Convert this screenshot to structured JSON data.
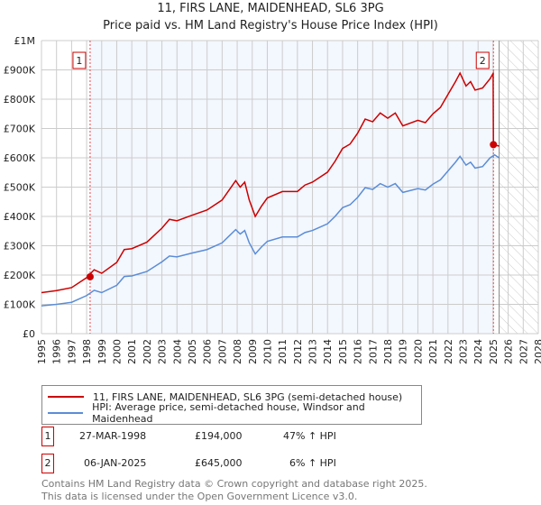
{
  "chart_data": {
    "type": "line",
    "title": "11, FIRS LANE, MAIDENHEAD, SL6 3PG",
    "subtitle": "Price paid vs. HM Land Registry's House Price Index (HPI)",
    "xlim": [
      1995,
      2028
    ],
    "ylim": [
      0,
      1000000
    ],
    "x_ticks": [
      "1995",
      "1996",
      "1997",
      "1998",
      "1999",
      "2000",
      "2001",
      "2002",
      "2003",
      "2004",
      "2005",
      "2006",
      "2007",
      "2008",
      "2009",
      "2010",
      "2011",
      "2012",
      "2013",
      "2014",
      "2015",
      "2016",
      "2017",
      "2018",
      "2019",
      "2020",
      "2021",
      "2022",
      "2023",
      "2024",
      "2025",
      "2026",
      "2027",
      "2028"
    ],
    "y_ticks": [
      {
        "v": 0,
        "label": "£0"
      },
      {
        "v": 100000,
        "label": "£100K"
      },
      {
        "v": 200000,
        "label": "£200K"
      },
      {
        "v": 300000,
        "label": "£300K"
      },
      {
        "v": 400000,
        "label": "£400K"
      },
      {
        "v": 500000,
        "label": "£500K"
      },
      {
        "v": 600000,
        "label": "£600K"
      },
      {
        "v": 700000,
        "label": "£700K"
      },
      {
        "v": 800000,
        "label": "£800K"
      },
      {
        "v": 900000,
        "label": "£900K"
      },
      {
        "v": 1000000,
        "label": "£1M"
      }
    ],
    "grid": true,
    "shaded_range": [
      1998.23,
      2025.02
    ],
    "forecast_hatch_from": 2025.4,
    "series": [
      {
        "name": "11, FIRS LANE, MAIDENHEAD, SL6 3PG (semi-detached house)",
        "color": "#cc0000",
        "points": [
          [
            1995,
            140
          ],
          [
            1996,
            147
          ],
          [
            1997,
            157
          ],
          [
            1998,
            191
          ],
          [
            1998.5,
            218
          ],
          [
            1999,
            206
          ],
          [
            2000,
            243
          ],
          [
            2000.5,
            287
          ],
          [
            2001,
            290
          ],
          [
            2002,
            312
          ],
          [
            2003,
            360
          ],
          [
            2003.5,
            390
          ],
          [
            2004,
            385
          ],
          [
            2005,
            404
          ],
          [
            2006,
            422
          ],
          [
            2007,
            456
          ],
          [
            2007.9,
            522
          ],
          [
            2008.2,
            500
          ],
          [
            2008.5,
            517
          ],
          [
            2008.8,
            456
          ],
          [
            2009.2,
            400
          ],
          [
            2009.6,
            434
          ],
          [
            2010,
            463
          ],
          [
            2011,
            485
          ],
          [
            2012,
            485
          ],
          [
            2012.5,
            507
          ],
          [
            2013,
            517
          ],
          [
            2014,
            551
          ],
          [
            2014.5,
            588
          ],
          [
            2015,
            632
          ],
          [
            2015.5,
            647
          ],
          [
            2016,
            684
          ],
          [
            2016.5,
            732
          ],
          [
            2017,
            723
          ],
          [
            2017.5,
            753
          ],
          [
            2018,
            735
          ],
          [
            2018.5,
            753
          ],
          [
            2019,
            709
          ],
          [
            2020,
            728
          ],
          [
            2020.5,
            720
          ],
          [
            2021,
            750
          ],
          [
            2021.5,
            772
          ],
          [
            2022,
            816
          ],
          [
            2022.5,
            860
          ],
          [
            2022.8,
            889
          ],
          [
            2023.2,
            845
          ],
          [
            2023.5,
            860
          ],
          [
            2023.8,
            831
          ],
          [
            2024.3,
            838
          ],
          [
            2024.8,
            870
          ],
          [
            2025.0,
            888
          ],
          [
            2025.02,
            645
          ],
          [
            2025.4,
            640
          ]
        ]
      },
      {
        "name": "HPI: Average price, semi-detached house, Windsor and Maidenhead",
        "color": "#5b8dd6",
        "points": [
          [
            1995,
            95
          ],
          [
            1996,
            100
          ],
          [
            1997,
            107
          ],
          [
            1998,
            130
          ],
          [
            1998.5,
            148
          ],
          [
            1999,
            140
          ],
          [
            2000,
            165
          ],
          [
            2000.5,
            195
          ],
          [
            2001,
            197
          ],
          [
            2002,
            212
          ],
          [
            2003,
            245
          ],
          [
            2003.5,
            265
          ],
          [
            2004,
            262
          ],
          [
            2005,
            275
          ],
          [
            2006,
            287
          ],
          [
            2007,
            310
          ],
          [
            2007.9,
            355
          ],
          [
            2008.2,
            340
          ],
          [
            2008.5,
            352
          ],
          [
            2008.8,
            310
          ],
          [
            2009.2,
            272
          ],
          [
            2009.6,
            295
          ],
          [
            2010,
            315
          ],
          [
            2011,
            330
          ],
          [
            2012,
            330
          ],
          [
            2012.5,
            345
          ],
          [
            2013,
            352
          ],
          [
            2014,
            375
          ],
          [
            2014.5,
            400
          ],
          [
            2015,
            430
          ],
          [
            2015.5,
            440
          ],
          [
            2016,
            465
          ],
          [
            2016.5,
            498
          ],
          [
            2017,
            492
          ],
          [
            2017.5,
            512
          ],
          [
            2018,
            500
          ],
          [
            2018.5,
            512
          ],
          [
            2019,
            482
          ],
          [
            2020,
            495
          ],
          [
            2020.5,
            490
          ],
          [
            2021,
            510
          ],
          [
            2021.5,
            525
          ],
          [
            2022,
            555
          ],
          [
            2022.5,
            585
          ],
          [
            2022.8,
            605
          ],
          [
            2023.2,
            575
          ],
          [
            2023.5,
            585
          ],
          [
            2023.8,
            565
          ],
          [
            2024.3,
            570
          ],
          [
            2024.8,
            600
          ],
          [
            2025.1,
            610
          ],
          [
            2025.4,
            600
          ]
        ]
      }
    ],
    "units_note": "series point values in £ thousands",
    "sales": [
      {
        "id": "1",
        "x": 1998.23,
        "y": 194
      },
      {
        "id": "2",
        "x": 2025.02,
        "y": 645
      }
    ]
  },
  "legend": {
    "red": "11, FIRS LANE, MAIDENHEAD, SL6 3PG (semi-detached house)",
    "blue": "HPI: Average price, semi-detached house, Windsor and Maidenhead"
  },
  "transactions": [
    {
      "id": "1",
      "date": "27-MAR-1998",
      "price": "£194,000",
      "hpi": "47% ↑ HPI"
    },
    {
      "id": "2",
      "date": "06-JAN-2025",
      "price": "£645,000",
      "hpi": "6% ↑ HPI"
    }
  ],
  "footer": {
    "line1": "Contains HM Land Registry data © Crown copyright and database right 2025.",
    "line2": "This data is licensed under the Open Government Licence v3.0."
  }
}
